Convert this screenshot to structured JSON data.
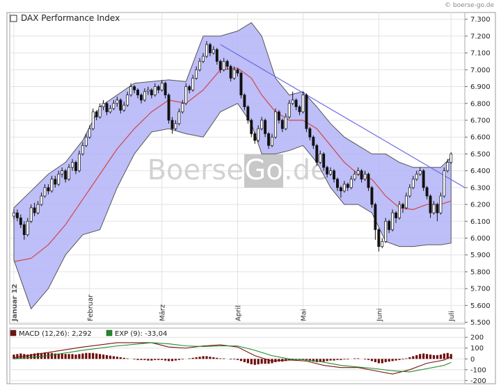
{
  "copyright": "© boerse-go.de",
  "chart_data": [
    {
      "type": "candlestick",
      "title": "DAX Performance Index",
      "watermark": [
        "Boerse",
        "Go",
        ".de"
      ],
      "xlim": [
        -1.2,
        131
      ],
      "ylim": [
        5490,
        7340
      ],
      "grid": true,
      "xticks": [
        {
          "value": 0,
          "label": "Januar 12"
        },
        {
          "value": 22,
          "label": "Februar"
        },
        {
          "value": 43,
          "label": "März"
        },
        {
          "value": 65,
          "label": "April"
        },
        {
          "value": 84,
          "label": "Mai"
        },
        {
          "value": 106,
          "label": "Juni"
        },
        {
          "value": 127,
          "label": "Juli"
        }
      ],
      "yticks": [
        {
          "value": 5500,
          "label": "5.500"
        },
        {
          "value": 5600,
          "label": "5.600"
        },
        {
          "value": 5700,
          "label": "5.700"
        },
        {
          "value": 5800,
          "label": "5.800"
        },
        {
          "value": 5900,
          "label": "5.900"
        },
        {
          "value": 6000,
          "label": "6.000"
        },
        {
          "value": 6100,
          "label": "6.100"
        },
        {
          "value": 6200,
          "label": "6.200"
        },
        {
          "value": 6300,
          "label": "6.300"
        },
        {
          "value": 6400,
          "label": "6.400"
        },
        {
          "value": 6500,
          "label": "6.500"
        },
        {
          "value": 6600,
          "label": "6.600"
        },
        {
          "value": 6700,
          "label": "6.700"
        },
        {
          "value": 6800,
          "label": "6.800"
        },
        {
          "value": 6900,
          "label": "6.900"
        },
        {
          "value": 7000,
          "label": "7.000"
        },
        {
          "value": 7100,
          "label": "7.100"
        },
        {
          "value": 7200,
          "label": "7.200"
        },
        {
          "value": 7300,
          "label": "7.300"
        }
      ],
      "candles": [
        [
          6130,
          6170,
          6110,
          6150
        ],
        [
          6150,
          6170,
          6100,
          6120
        ],
        [
          6120,
          6140,
          6060,
          6080
        ],
        [
          6080,
          6100,
          5990,
          6020
        ],
        [
          6020,
          6120,
          6010,
          6100
        ],
        [
          6100,
          6200,
          6090,
          6180
        ],
        [
          6180,
          6210,
          6130,
          6150
        ],
        [
          6150,
          6220,
          6140,
          6200
        ],
        [
          6200,
          6270,
          6190,
          6250
        ],
        [
          6250,
          6320,
          6240,
          6300
        ],
        [
          6300,
          6320,
          6260,
          6280
        ],
        [
          6280,
          6370,
          6270,
          6350
        ],
        [
          6350,
          6370,
          6300,
          6320
        ],
        [
          6320,
          6400,
          6310,
          6380
        ],
        [
          6380,
          6420,
          6360,
          6400
        ],
        [
          6400,
          6410,
          6330,
          6350
        ],
        [
          6350,
          6440,
          6340,
          6420
        ],
        [
          6420,
          6470,
          6400,
          6450
        ],
        [
          6450,
          6460,
          6380,
          6400
        ],
        [
          6400,
          6520,
          6390,
          6500
        ],
        [
          6500,
          6570,
          6490,
          6550
        ],
        [
          6550,
          6620,
          6540,
          6600
        ],
        [
          6600,
          6670,
          6590,
          6650
        ],
        [
          6650,
          6770,
          6640,
          6750
        ],
        [
          6750,
          6760,
          6700,
          6720
        ],
        [
          6720,
          6800,
          6710,
          6780
        ],
        [
          6780,
          6820,
          6760,
          6800
        ],
        [
          6800,
          6810,
          6730,
          6750
        ],
        [
          6750,
          6790,
          6740,
          6770
        ],
        [
          6770,
          6820,
          6760,
          6800
        ],
        [
          6800,
          6840,
          6780,
          6820
        ],
        [
          6820,
          6830,
          6740,
          6760
        ],
        [
          6760,
          6810,
          6750,
          6790
        ],
        [
          6790,
          6870,
          6780,
          6850
        ],
        [
          6850,
          6920,
          6840,
          6900
        ],
        [
          6900,
          6910,
          6860,
          6880
        ],
        [
          6880,
          6890,
          6830,
          6850
        ],
        [
          6850,
          6860,
          6800,
          6820
        ],
        [
          6820,
          6890,
          6810,
          6870
        ],
        [
          6870,
          6900,
          6850,
          6880
        ],
        [
          6880,
          6890,
          6830,
          6850
        ],
        [
          6850,
          6920,
          6840,
          6900
        ],
        [
          6900,
          6910,
          6860,
          6880
        ],
        [
          6880,
          6940,
          6870,
          6920
        ],
        [
          6920,
          6930,
          6830,
          6850
        ],
        [
          6850,
          6860,
          6680,
          6700
        ],
        [
          6700,
          6720,
          6620,
          6650
        ],
        [
          6650,
          6700,
          6640,
          6680
        ],
        [
          6680,
          6770,
          6670,
          6750
        ],
        [
          6750,
          6820,
          6740,
          6800
        ],
        [
          6800,
          6920,
          6790,
          6900
        ],
        [
          6900,
          6910,
          6860,
          6880
        ],
        [
          6880,
          6970,
          6870,
          6950
        ],
        [
          6950,
          7020,
          6940,
          7000
        ],
        [
          7000,
          7070,
          6990,
          7050
        ],
        [
          7050,
          7100,
          7040,
          7080
        ],
        [
          7080,
          7170,
          7070,
          7150
        ],
        [
          7150,
          7160,
          7080,
          7100
        ],
        [
          7100,
          7140,
          7090,
          7120
        ],
        [
          7120,
          7130,
          7030,
          7050
        ],
        [
          7050,
          7060,
          6980,
          7000
        ],
        [
          7000,
          7070,
          6990,
          7050
        ],
        [
          7050,
          7060,
          7000,
          7020
        ],
        [
          7020,
          7030,
          6930,
          6950
        ],
        [
          6950,
          7020,
          6940,
          7000
        ],
        [
          7000,
          7010,
          6960,
          6980
        ],
        [
          6980,
          6990,
          6830,
          6850
        ],
        [
          6850,
          6860,
          6760,
          6780
        ],
        [
          6780,
          6790,
          6680,
          6700
        ],
        [
          6700,
          6710,
          6600,
          6620
        ],
        [
          6620,
          6630,
          6560,
          6580
        ],
        [
          6580,
          6670,
          6570,
          6650
        ],
        [
          6650,
          6720,
          6640,
          6700
        ],
        [
          6700,
          6710,
          6600,
          6620
        ],
        [
          6620,
          6630,
          6530,
          6550
        ],
        [
          6550,
          6620,
          6540,
          6600
        ],
        [
          6600,
          6770,
          6590,
          6750
        ],
        [
          6750,
          6760,
          6680,
          6700
        ],
        [
          6700,
          6710,
          6630,
          6650
        ],
        [
          6650,
          6740,
          6640,
          6720
        ],
        [
          6720,
          6820,
          6710,
          6800
        ],
        [
          6800,
          6870,
          6790,
          6820
        ],
        [
          6820,
          6830,
          6760,
          6780
        ],
        [
          6780,
          6790,
          6730,
          6750
        ],
        [
          6750,
          6870,
          6740,
          6850
        ],
        [
          6850,
          6860,
          6630,
          6650
        ],
        [
          6650,
          6660,
          6580,
          6600
        ],
        [
          6600,
          6610,
          6530,
          6550
        ],
        [
          6550,
          6560,
          6430,
          6450
        ],
        [
          6450,
          6520,
          6440,
          6500
        ],
        [
          6500,
          6510,
          6400,
          6420
        ],
        [
          6420,
          6430,
          6360,
          6380
        ],
        [
          6380,
          6420,
          6370,
          6400
        ],
        [
          6400,
          6410,
          6330,
          6350
        ],
        [
          6350,
          6360,
          6280,
          6300
        ],
        [
          6300,
          6310,
          6240,
          6280
        ],
        [
          6280,
          6340,
          6270,
          6320
        ],
        [
          6320,
          6330,
          6280,
          6300
        ],
        [
          6300,
          6370,
          6290,
          6350
        ],
        [
          6350,
          6400,
          6340,
          6380
        ],
        [
          6380,
          6420,
          6370,
          6400
        ],
        [
          6400,
          6410,
          6330,
          6350
        ],
        [
          6350,
          6400,
          6340,
          6380
        ],
        [
          6380,
          6390,
          6280,
          6300
        ],
        [
          6300,
          6310,
          6180,
          6200
        ],
        [
          6200,
          6210,
          5990,
          6050
        ],
        [
          6050,
          6060,
          5920,
          5950
        ],
        [
          5950,
          6000,
          5940,
          5980
        ],
        [
          5980,
          6120,
          5970,
          6100
        ],
        [
          6100,
          6110,
          6030,
          6050
        ],
        [
          6050,
          6170,
          6040,
          6150
        ],
        [
          6150,
          6160,
          6090,
          6120
        ],
        [
          6120,
          6220,
          6110,
          6200
        ],
        [
          6200,
          6210,
          6150,
          6180
        ],
        [
          6180,
          6270,
          6170,
          6250
        ],
        [
          6250,
          6320,
          6240,
          6300
        ],
        [
          6300,
          6370,
          6290,
          6350
        ],
        [
          6350,
          6400,
          6340,
          6380
        ],
        [
          6380,
          6420,
          6370,
          6400
        ],
        [
          6400,
          6410,
          6280,
          6300
        ],
        [
          6300,
          6310,
          6230,
          6250
        ],
        [
          6250,
          6260,
          6120,
          6150
        ],
        [
          6150,
          6220,
          6140,
          6200
        ],
        [
          6200,
          6210,
          6100,
          6150
        ],
        [
          6150,
          6270,
          6140,
          6250
        ],
        [
          6250,
          6420,
          6240,
          6400
        ],
        [
          6400,
          6470,
          6390,
          6450
        ],
        [
          6450,
          6510,
          6440,
          6500
        ]
      ],
      "bands": {
        "x": [
          0,
          5,
          10,
          15,
          20,
          25,
          30,
          35,
          40,
          45,
          50,
          55,
          60,
          65,
          69,
          72,
          76,
          80,
          84,
          88,
          92,
          96,
          100,
          104,
          108,
          112,
          116,
          120,
          124,
          127
        ],
        "upper": [
          6180,
          6280,
          6380,
          6450,
          6580,
          6780,
          6850,
          6920,
          6930,
          6940,
          6930,
          7200,
          7200,
          7230,
          7280,
          7200,
          6950,
          6850,
          6870,
          6780,
          6680,
          6600,
          6550,
          6500,
          6500,
          6450,
          6420,
          6420,
          6420,
          6480
        ],
        "middle": [
          5860,
          5880,
          5960,
          6080,
          6230,
          6380,
          6530,
          6650,
          6750,
          6820,
          6800,
          6880,
          7000,
          7010,
          6950,
          6850,
          6750,
          6700,
          6700,
          6650,
          6550,
          6450,
          6380,
          6350,
          6250,
          6180,
          6170,
          6200,
          6200,
          6220
        ],
        "lower": [
          5870,
          5580,
          5700,
          5900,
          6020,
          6050,
          6300,
          6500,
          6630,
          6650,
          6620,
          6600,
          6750,
          6800,
          6680,
          6500,
          6500,
          6520,
          6550,
          6450,
          6300,
          6200,
          6200,
          6150,
          5980,
          5950,
          5950,
          5960,
          5960,
          5970
        ],
        "color": "#b3b3f7",
        "middle_color": "#d04848"
      },
      "trendline": {
        "x": [
          60,
          131
        ],
        "values": [
          7150,
          6300
        ],
        "color": "#6a6ae8"
      }
    },
    {
      "type": "macd",
      "xlim": [
        -1.2,
        131
      ],
      "ylim": [
        -230,
        285
      ],
      "yticks": [
        200,
        100,
        0,
        -100,
        -200
      ],
      "histogram": {
        "color": "#6e0a0a",
        "values": [
          40,
          45,
          50,
          45,
          40,
          45,
          50,
          55,
          55,
          60,
          55,
          55,
          50,
          50,
          50,
          45,
          45,
          45,
          40,
          45,
          50,
          55,
          55,
          55,
          50,
          45,
          40,
          35,
          30,
          25,
          20,
          15,
          10,
          5,
          0,
          -5,
          -10,
          -10,
          -10,
          -15,
          -15,
          -10,
          -10,
          -10,
          -15,
          -20,
          -20,
          -15,
          -10,
          -5,
          0,
          5,
          10,
          15,
          20,
          25,
          25,
          20,
          15,
          10,
          5,
          5,
          0,
          -5,
          -5,
          -10,
          -20,
          -30,
          -40,
          -50,
          -55,
          -50,
          -45,
          -45,
          -45,
          -40,
          -30,
          -25,
          -25,
          -20,
          -15,
          -10,
          -10,
          -10,
          -5,
          -15,
          -20,
          -25,
          -30,
          -25,
          -25,
          -20,
          -15,
          -15,
          -10,
          -10,
          -5,
          -5,
          0,
          5,
          5,
          0,
          -5,
          -10,
          -20,
          -30,
          -40,
          -40,
          -30,
          -25,
          -20,
          -15,
          -10,
          -5,
          5,
          15,
          25,
          35,
          45,
          50,
          45,
          40,
          35,
          35,
          40,
          50,
          55,
          45
        ]
      },
      "series": [
        {
          "name": "MACD (12,26): 2,292",
          "color": "#7a1010",
          "x": [
            0,
            10,
            20,
            30,
            40,
            45,
            50,
            55,
            60,
            65,
            70,
            75,
            80,
            85,
            90,
            95,
            100,
            105,
            110,
            115,
            120,
            125,
            127
          ],
          "values": [
            10,
            60,
            110,
            150,
            150,
            110,
            100,
            120,
            130,
            110,
            30,
            -20,
            -10,
            -20,
            -60,
            -80,
            -80,
            -110,
            -140,
            -100,
            -40,
            -10,
            20
          ]
        },
        {
          "name": "EXP (9): -33,04",
          "color": "#1f8a2a",
          "x": [
            0,
            10,
            20,
            30,
            40,
            45,
            50,
            55,
            60,
            65,
            70,
            75,
            80,
            85,
            90,
            95,
            100,
            105,
            110,
            115,
            120,
            125,
            127
          ],
          "values": [
            0,
            30,
            80,
            120,
            150,
            140,
            120,
            115,
            120,
            120,
            80,
            30,
            0,
            -10,
            -30,
            -60,
            -75,
            -90,
            -110,
            -120,
            -90,
            -60,
            -33
          ]
        }
      ]
    }
  ]
}
